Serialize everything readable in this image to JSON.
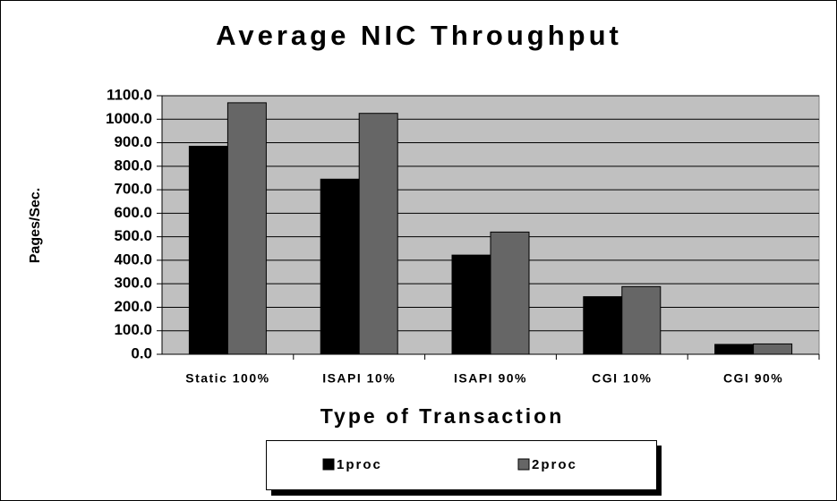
{
  "chart_data": {
    "type": "bar",
    "title": "Average NIC Throughput",
    "ylabel": "Pages/Sec.",
    "xlabel": "Type of Transaction",
    "categories": [
      "Static 100%",
      "ISAPI 10%",
      "ISAPI 90%",
      "CGI 10%",
      "CGI 90%"
    ],
    "series": [
      {
        "name": "1proc",
        "color": "#000000",
        "values": [
          885,
          745,
          422,
          245,
          42
        ]
      },
      {
        "name": "2proc",
        "color": "#666666",
        "values": [
          1070,
          1025,
          520,
          288,
          44
        ]
      }
    ],
    "ylim": [
      0,
      1100
    ],
    "yticks": [
      {
        "value": 0,
        "label": "0.0"
      },
      {
        "value": 100,
        "label": "100.0"
      },
      {
        "value": 200,
        "label": "200.0"
      },
      {
        "value": 300,
        "label": "300.0"
      },
      {
        "value": 400,
        "label": "400.0"
      },
      {
        "value": 500,
        "label": "500.0"
      },
      {
        "value": 600,
        "label": "600.0"
      },
      {
        "value": 700,
        "label": "700.0"
      },
      {
        "value": 800,
        "label": "800.0"
      },
      {
        "value": 900,
        "label": "900.0"
      },
      {
        "value": 1000,
        "label": "1000.0"
      },
      {
        "value": 1100,
        "label": "1100.0"
      }
    ],
    "grid": true,
    "plot_background": "#c0c0c0",
    "legend": "bottom"
  }
}
